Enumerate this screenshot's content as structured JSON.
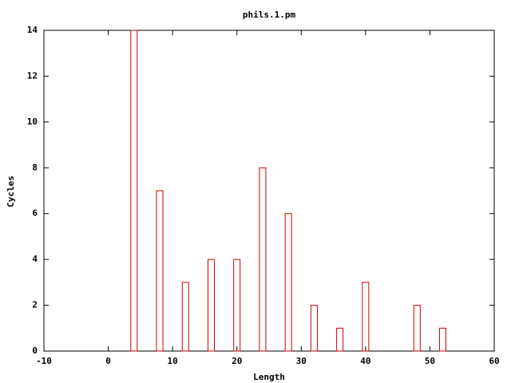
{
  "chart_data": {
    "type": "bar",
    "title": "phils.1.pm",
    "x_label": "Length",
    "y_label": "Cycles",
    "x": [
      4,
      8,
      12,
      16,
      20,
      24,
      28,
      32,
      36,
      40,
      48,
      52
    ],
    "values": [
      14,
      7,
      3,
      4,
      4,
      8,
      6,
      2,
      1,
      3,
      2,
      1
    ],
    "color": "#cc0000",
    "xlim": [
      -10,
      60
    ],
    "xticks": [
      -10,
      0,
      10,
      20,
      30,
      40,
      50,
      60
    ],
    "ylim": [
      0,
      14
    ],
    "yticks": [
      0,
      2,
      4,
      6,
      8,
      10,
      12,
      14
    ],
    "grid": false
  }
}
